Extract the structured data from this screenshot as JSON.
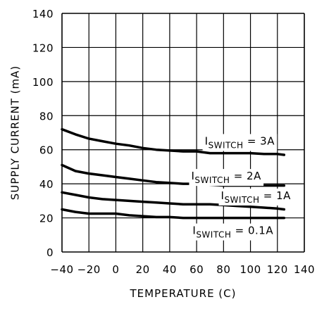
{
  "chart_data": {
    "type": "line",
    "title": "",
    "xlabel": "TEMPERATURE (C)",
    "ylabel": "SUPPLY CURRENT (mA)",
    "xlim": [
      -40,
      140
    ],
    "ylim": [
      0,
      140
    ],
    "x_ticks": [
      -40,
      -20,
      0,
      20,
      40,
      60,
      80,
      100,
      120,
      140
    ],
    "x_tick_labels": [
      "−40",
      "−20",
      "0",
      "20",
      "40",
      "60",
      "80",
      "100",
      "120",
      "140"
    ],
    "y_ticks": [
      0,
      20,
      40,
      60,
      80,
      100,
      120,
      140
    ],
    "y_tick_labels": [
      "0",
      "20",
      "40",
      "60",
      "80",
      "100",
      "120",
      "140"
    ],
    "grid": true,
    "legend": "inline labels",
    "colors": {
      "line": "#000000",
      "grid": "#000000",
      "background": "#ffffff"
    },
    "series": [
      {
        "name": "ISWITCH = 3A",
        "label_main": "I",
        "label_sub": "SWITCH",
        "label_rest": " = 3A",
        "x": [
          -40,
          -30,
          -20,
          -10,
          0,
          10,
          20,
          30,
          40,
          50,
          60,
          70,
          80,
          90,
          100,
          110,
          120,
          125
        ],
        "y": [
          72,
          69,
          66.5,
          65,
          63.5,
          62.5,
          61,
          60,
          59.5,
          59,
          59,
          58,
          58,
          58,
          58,
          57.5,
          57.5,
          57
        ]
      },
      {
        "name": "ISWITCH = 2A",
        "label_main": "I",
        "label_sub": "SWITCH",
        "label_rest": " = 2A",
        "x": [
          -40,
          -30,
          -20,
          -10,
          0,
          10,
          20,
          30,
          40,
          50,
          60,
          70,
          80,
          90,
          100,
          110,
          120,
          125
        ],
        "y": [
          51,
          47.5,
          46,
          45,
          44,
          43,
          42,
          41,
          40.5,
          40,
          40,
          39.5,
          39,
          39,
          39,
          39,
          39,
          39
        ]
      },
      {
        "name": "ISWITCH = 1A",
        "label_main": "I",
        "label_sub": "SWITCH",
        "label_rest": " = 1A",
        "x": [
          -40,
          -30,
          -20,
          -10,
          0,
          10,
          20,
          30,
          40,
          50,
          60,
          70,
          80,
          90,
          100,
          110,
          120,
          125
        ],
        "y": [
          35,
          33.5,
          32,
          31,
          30.5,
          30,
          29.5,
          29,
          28.5,
          28,
          28,
          28,
          27.5,
          27,
          26.5,
          26,
          25.5,
          25
        ]
      },
      {
        "name": "ISWITCH = 0.1A",
        "label_main": "I",
        "label_sub": "SWITCH",
        "label_rest": " = 0.1A",
        "x": [
          -40,
          -30,
          -20,
          -10,
          0,
          10,
          20,
          30,
          40,
          50,
          60,
          70,
          80,
          90,
          100,
          110,
          120,
          125
        ],
        "y": [
          25,
          23.5,
          22.5,
          22.5,
          22.5,
          21.5,
          21,
          20.5,
          20.5,
          20,
          20,
          20,
          20,
          20,
          20,
          20,
          20,
          20
        ]
      }
    ]
  }
}
